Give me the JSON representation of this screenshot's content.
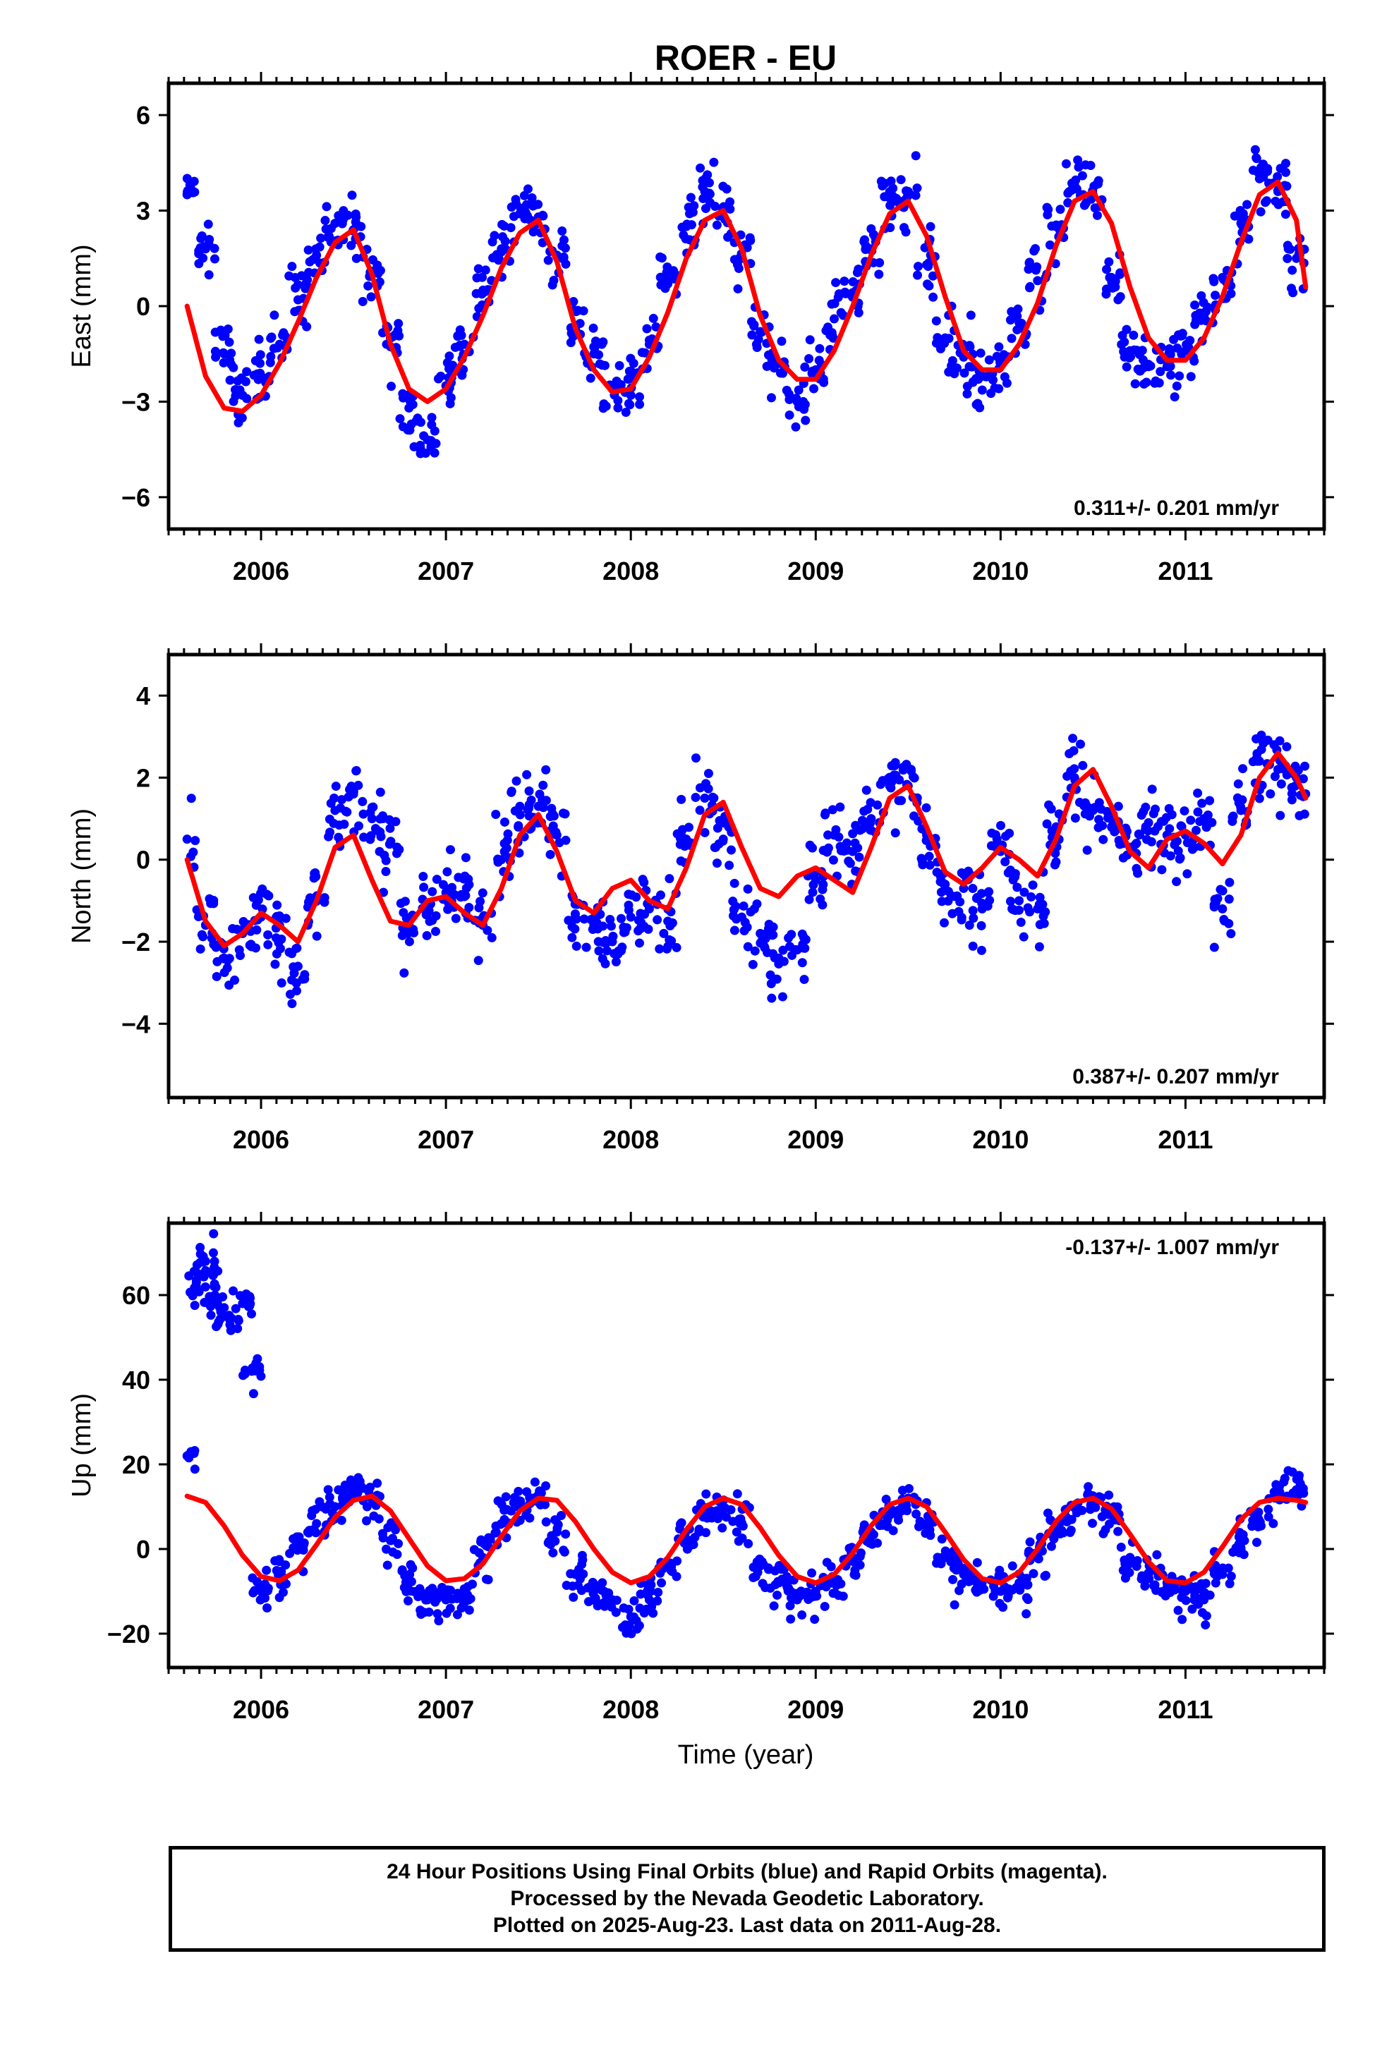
{
  "chart_data": {
    "type": "scatter",
    "title": "ROER - EU",
    "xlabel": "Time (year)",
    "xlim": [
      2005.5,
      2011.75
    ],
    "x_ticks": [
      2006,
      2007,
      2008,
      2009,
      2010,
      2011
    ],
    "x_tick_labels": [
      "2006",
      "2007",
      "2008",
      "2009",
      "2010",
      "2011"
    ],
    "data_range": {
      "start": 2005.6,
      "end": 2011.66
    },
    "legend": "none",
    "panels": [
      {
        "ylabel": "East (mm)",
        "ylim": [
          -7.0,
          7.0
        ],
        "yticks": [
          -6,
          -3,
          0,
          3,
          6
        ],
        "ytick_labels": [
          "−6",
          "−3",
          "0",
          "3",
          "6"
        ],
        "rate_text": "0.311+/- 0.201 mm/yr",
        "rate_position": "bottom-right",
        "series": [
          {
            "kind": "points",
            "color": "#0000ff",
            "x": [
              2005.6,
              2005.7,
              2005.8,
              2005.9,
              2006.0,
              2006.1,
              2006.2,
              2006.3,
              2006.4,
              2006.5,
              2006.6,
              2006.7,
              2006.8,
              2006.9,
              2007.0,
              2007.1,
              2007.2,
              2007.3,
              2007.4,
              2007.5,
              2007.6,
              2007.7,
              2007.8,
              2007.9,
              2008.0,
              2008.1,
              2008.2,
              2008.3,
              2008.4,
              2008.5,
              2008.6,
              2008.7,
              2008.8,
              2008.9,
              2009.0,
              2009.1,
              2009.2,
              2009.3,
              2009.4,
              2009.5,
              2009.6,
              2009.7,
              2009.8,
              2009.9,
              2010.0,
              2010.1,
              2010.2,
              2010.3,
              2010.4,
              2010.5,
              2010.6,
              2010.7,
              2010.8,
              2010.9,
              2011.0,
              2011.1,
              2011.2,
              2011.3,
              2011.4,
              2011.5,
              2011.6
            ],
            "y": [
              3.5,
              1.8,
              -1.5,
              -2.8,
              -2.2,
              -1.2,
              0.2,
              1.6,
              2.6,
              2.4,
              1.0,
              -1.0,
              -3.2,
              -4.2,
              -2.5,
              -1.2,
              0.5,
              1.8,
              2.9,
              2.8,
              1.6,
              -0.6,
              -1.5,
              -2.6,
              -2.8,
              -1.2,
              0.7,
              2.5,
              3.6,
              3.1,
              1.5,
              -0.8,
              -1.8,
              -3.0,
              -2.0,
              -0.4,
              0.4,
              1.8,
              3.4,
              3.6,
              1.3,
              -1.0,
              -1.6,
              -2.2,
              -1.8,
              -0.7,
              0.8,
              2.5,
              3.8,
              3.5,
              0.9,
              -1.4,
              -1.9,
              -1.9,
              -1.4,
              -0.3,
              0.9,
              2.6,
              4.0,
              3.6,
              1.5
            ]
          },
          {
            "kind": "fit",
            "color": "#ff0000",
            "x": [
              2005.6,
              2005.7,
              2005.8,
              2005.9,
              2006.0,
              2006.1,
              2006.2,
              2006.3,
              2006.4,
              2006.5,
              2006.6,
              2006.7,
              2006.8,
              2006.9,
              2007.0,
              2007.1,
              2007.2,
              2007.3,
              2007.4,
              2007.5,
              2007.6,
              2007.7,
              2007.8,
              2007.9,
              2008.0,
              2008.1,
              2008.2,
              2008.3,
              2008.4,
              2008.5,
              2008.6,
              2008.7,
              2008.8,
              2008.9,
              2009.0,
              2009.1,
              2009.2,
              2009.3,
              2009.4,
              2009.5,
              2009.6,
              2009.7,
              2009.8,
              2009.9,
              2010.0,
              2010.1,
              2010.2,
              2010.3,
              2010.4,
              2010.5,
              2010.6,
              2010.7,
              2010.8,
              2010.9,
              2011.0,
              2011.1,
              2011.2,
              2011.3,
              2011.4,
              2011.5,
              2011.6,
              2011.65
            ],
            "y": [
              0.0,
              -2.2,
              -3.2,
              -3.3,
              -2.8,
              -1.8,
              -0.5,
              0.9,
              2.0,
              2.4,
              1.0,
              -1.2,
              -2.6,
              -3.0,
              -2.6,
              -1.6,
              -0.3,
              1.2,
              2.3,
              2.7,
              1.4,
              -0.7,
              -2.0,
              -2.7,
              -2.6,
              -1.6,
              -0.2,
              1.5,
              2.7,
              3.0,
              1.8,
              -0.3,
              -1.7,
              -2.3,
              -2.3,
              -1.4,
              0.0,
              1.6,
              2.9,
              3.3,
              2.2,
              0.3,
              -1.4,
              -2.0,
              -2.0,
              -1.2,
              0.1,
              1.9,
              3.3,
              3.6,
              2.6,
              0.6,
              -1.0,
              -1.7,
              -1.7,
              -1.0,
              0.3,
              2.0,
              3.5,
              3.9,
              2.7,
              0.6
            ]
          }
        ]
      },
      {
        "ylabel": "North (mm)",
        "ylim": [
          -5.8,
          5.0
        ],
        "yticks": [
          -4,
          -2,
          0,
          2,
          4
        ],
        "ytick_labels": [
          "−4",
          "−2",
          "0",
          "2",
          "4"
        ],
        "rate_text": "0.387+/- 0.207 mm/yr",
        "rate_position": "bottom-right",
        "series": [
          {
            "kind": "points",
            "color": "#0000ff",
            "x": [
              2005.6,
              2005.7,
              2005.8,
              2005.9,
              2006.0,
              2006.1,
              2006.2,
              2006.3,
              2006.4,
              2006.5,
              2006.6,
              2006.7,
              2006.8,
              2006.9,
              2007.0,
              2007.1,
              2007.2,
              2007.3,
              2007.4,
              2007.5,
              2007.6,
              2007.7,
              2007.8,
              2007.9,
              2008.0,
              2008.1,
              2008.2,
              2008.3,
              2008.4,
              2008.5,
              2008.6,
              2008.7,
              2008.8,
              2008.9,
              2009.0,
              2009.1,
              2009.2,
              2009.3,
              2009.4,
              2009.5,
              2009.6,
              2009.7,
              2009.8,
              2009.9,
              2010.0,
              2010.1,
              2010.2,
              2010.3,
              2010.4,
              2010.5,
              2010.6,
              2010.7,
              2010.8,
              2010.9,
              2011.0,
              2011.1,
              2011.2,
              2011.3,
              2011.4,
              2011.5,
              2011.6
            ],
            "y": [
              0.5,
              -1.6,
              -2.4,
              -1.8,
              -1.4,
              -1.6,
              -2.6,
              -1.0,
              1.2,
              1.6,
              1.0,
              0.4,
              -1.6,
              -1.3,
              -0.8,
              -0.9,
              -1.6,
              0.0,
              1.3,
              1.3,
              0.6,
              -1.4,
              -1.6,
              -2.0,
              -1.4,
              -1.2,
              -1.5,
              0.5,
              1.5,
              0.5,
              -1.4,
              -1.8,
              -2.4,
              -2.2,
              -0.5,
              0.6,
              0.2,
              1.0,
              1.8,
              1.8,
              0.6,
              -0.6,
              -0.7,
              -1.2,
              0.2,
              -1.0,
              -1.2,
              0.8,
              2.0,
              1.2,
              0.8,
              0.3,
              0.9,
              0.6,
              0.6,
              1.0,
              -1.2,
              1.2,
              2.4,
              2.2,
              2.0
            ]
          },
          {
            "kind": "fit",
            "color": "#ff0000",
            "x": [
              2005.6,
              2005.7,
              2005.8,
              2005.9,
              2006.0,
              2006.1,
              2006.2,
              2006.3,
              2006.4,
              2006.5,
              2006.6,
              2006.7,
              2006.8,
              2006.9,
              2007.0,
              2007.1,
              2007.2,
              2007.3,
              2007.4,
              2007.5,
              2007.6,
              2007.7,
              2007.8,
              2007.9,
              2008.0,
              2008.1,
              2008.2,
              2008.3,
              2008.4,
              2008.5,
              2008.6,
              2008.7,
              2008.8,
              2008.9,
              2009.0,
              2009.1,
              2009.2,
              2009.3,
              2009.4,
              2009.5,
              2009.6,
              2009.7,
              2009.8,
              2009.9,
              2010.0,
              2010.1,
              2010.2,
              2010.3,
              2010.4,
              2010.5,
              2010.6,
              2010.7,
              2010.8,
              2010.9,
              2011.0,
              2011.1,
              2011.2,
              2011.3,
              2011.4,
              2011.5,
              2011.6,
              2011.65
            ],
            "y": [
              0.0,
              -1.5,
              -2.1,
              -1.8,
              -1.3,
              -1.6,
              -2.0,
              -1.0,
              0.3,
              0.6,
              -0.5,
              -1.5,
              -1.6,
              -1.0,
              -0.9,
              -1.3,
              -1.6,
              -0.7,
              0.6,
              1.1,
              0.2,
              -1.0,
              -1.3,
              -0.7,
              -0.5,
              -1.0,
              -1.2,
              -0.2,
              1.1,
              1.4,
              0.3,
              -0.7,
              -0.9,
              -0.4,
              -0.2,
              -0.5,
              -0.8,
              0.3,
              1.5,
              1.8,
              0.8,
              -0.3,
              -0.6,
              -0.2,
              0.3,
              0.0,
              -0.4,
              0.5,
              1.8,
              2.2,
              1.3,
              0.2,
              -0.2,
              0.5,
              0.7,
              0.4,
              -0.1,
              0.6,
              2.0,
              2.6,
              2.0,
              1.5
            ]
          }
        ]
      },
      {
        "ylabel": "Up (mm)",
        "ylim": [
          -28,
          77
        ],
        "yticks": [
          -20,
          0,
          20,
          40,
          60
        ],
        "ytick_labels": [
          "−20",
          "0",
          "20",
          "40",
          "60"
        ],
        "rate_text": "-0.137+/- 1.007 mm/yr",
        "rate_position": "top-right",
        "series": [
          {
            "kind": "points",
            "color": "#0000ff",
            "x": [
              2005.6,
              2005.65,
              2005.7,
              2005.75,
              2005.8,
              2005.9,
              2005.95,
              2006.0,
              2006.1,
              2006.2,
              2006.3,
              2006.4,
              2006.5,
              2006.6,
              2006.7,
              2006.8,
              2006.9,
              2007.0,
              2007.1,
              2007.2,
              2007.3,
              2007.4,
              2007.5,
              2007.6,
              2007.7,
              2007.8,
              2007.9,
              2008.0,
              2008.1,
              2008.2,
              2008.3,
              2008.4,
              2008.5,
              2008.6,
              2008.7,
              2008.8,
              2008.9,
              2009.0,
              2009.1,
              2009.2,
              2009.3,
              2009.4,
              2009.5,
              2009.6,
              2009.7,
              2009.8,
              2009.9,
              2010.0,
              2010.1,
              2010.2,
              2010.3,
              2010.4,
              2010.5,
              2010.6,
              2010.7,
              2010.8,
              2010.9,
              2011.0,
              2011.1,
              2011.2,
              2011.3,
              2011.4,
              2011.5,
              2011.6
            ],
            "y": [
              22.0,
              63.0,
              68.0,
              60.0,
              55.0,
              58.0,
              42.0,
              -10.0,
              -6.0,
              0.0,
              6.0,
              10.0,
              14.0,
              12.0,
              2.0,
              -8.0,
              -12.0,
              -12.0,
              -10.0,
              -2.0,
              6.0,
              10.0,
              12.0,
              4.0,
              -6.0,
              -10.0,
              -12.0,
              -16.0,
              -12.0,
              -4.0,
              2.0,
              8.0,
              10.0,
              6.0,
              -4.0,
              -8.0,
              -12.0,
              -10.0,
              -8.0,
              -2.0,
              4.0,
              8.0,
              12.0,
              6.0,
              -2.0,
              -6.0,
              -8.0,
              -10.0,
              -8.0,
              -2.0,
              4.0,
              10.0,
              12.0,
              8.0,
              -2.0,
              -6.0,
              -8.0,
              -10.0,
              -12.0,
              -6.0,
              0.0,
              6.0,
              12.0,
              14.0
            ]
          },
          {
            "kind": "fit",
            "color": "#ff0000",
            "x": [
              2005.6,
              2005.7,
              2005.8,
              2005.9,
              2006.0,
              2006.1,
              2006.2,
              2006.3,
              2006.4,
              2006.5,
              2006.6,
              2006.7,
              2006.8,
              2006.9,
              2007.0,
              2007.1,
              2007.2,
              2007.3,
              2007.4,
              2007.5,
              2007.6,
              2007.7,
              2007.8,
              2007.9,
              2008.0,
              2008.1,
              2008.2,
              2008.3,
              2008.4,
              2008.5,
              2008.6,
              2008.7,
              2008.8,
              2008.9,
              2009.0,
              2009.1,
              2009.2,
              2009.3,
              2009.4,
              2009.5,
              2009.6,
              2009.7,
              2009.8,
              2009.9,
              2010.0,
              2010.1,
              2010.2,
              2010.3,
              2010.4,
              2010.5,
              2010.6,
              2010.7,
              2010.8,
              2010.9,
              2011.0,
              2011.1,
              2011.2,
              2011.3,
              2011.4,
              2011.5,
              2011.6,
              2011.65
            ],
            "y": [
              12.5,
              11.0,
              5.5,
              -1.5,
              -6.5,
              -7.5,
              -5.0,
              1.0,
              7.5,
              11.5,
              12.5,
              9.0,
              2.5,
              -4.0,
              -7.5,
              -7.0,
              -3.5,
              3.0,
              9.0,
              12.0,
              11.5,
              6.5,
              0.0,
              -5.5,
              -8.0,
              -6.5,
              -2.0,
              4.5,
              10.0,
              12.0,
              10.5,
              5.0,
              -1.5,
              -6.5,
              -8.0,
              -6.0,
              -1.0,
              5.5,
              10.5,
              12.0,
              10.0,
              4.0,
              -2.5,
              -7.0,
              -8.0,
              -5.5,
              0.0,
              6.5,
              11.0,
              12.0,
              9.5,
              3.5,
              -3.0,
              -7.5,
              -8.0,
              -5.5,
              0.5,
              7.0,
              11.0,
              12.0,
              11.5,
              11.0
            ]
          }
        ]
      }
    ]
  },
  "caption": {
    "line1": "24 Hour Positions Using Final Orbits (blue) and Rapid Orbits (magenta).",
    "line2": "Processed by the Nevada Geodetic Laboratory.",
    "line3": "Plotted on 2025-Aug-23. Last data on 2011-Aug-28."
  }
}
